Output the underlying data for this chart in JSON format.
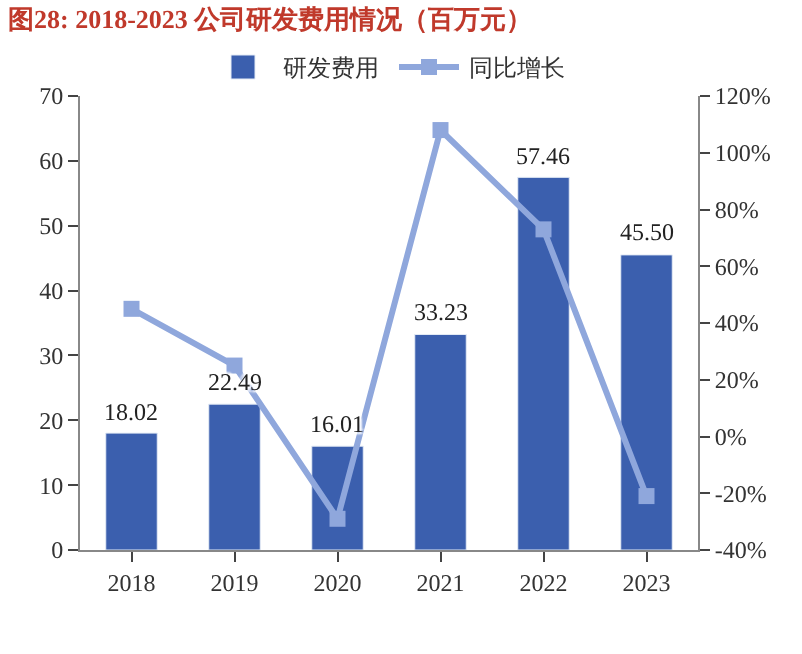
{
  "chart_data": {
    "type": "bar",
    "title": "图28: 2018-2023 公司研发费用情况（百万元）",
    "categories": [
      "2018",
      "2019",
      "2020",
      "2021",
      "2022",
      "2023"
    ],
    "series": [
      {
        "name": "研发费用",
        "color": "#3b5fae",
        "values": [
          18.02,
          22.49,
          16.01,
          33.23,
          57.46,
          45.5
        ],
        "value_labels": [
          "18.02",
          "22.49",
          "16.01",
          "33.23",
          "57.46",
          "45.50"
        ]
      },
      {
        "name": "同比增长",
        "type": "line",
        "axis": "y2",
        "color": "#8fa7dc",
        "marker": "square",
        "values": [
          45,
          25,
          -29,
          108,
          73,
          -21
        ]
      }
    ],
    "ylim": [
      0,
      70
    ],
    "yticks": [
      0,
      10,
      20,
      30,
      40,
      50,
      60,
      70
    ],
    "y2lim": [
      -40,
      120
    ],
    "y2ticks": [
      {
        "value": -40,
        "label": "-40%"
      },
      {
        "value": -20,
        "label": "-20%"
      },
      {
        "value": 0,
        "label": "0%"
      },
      {
        "value": 20,
        "label": "20%"
      },
      {
        "value": 40,
        "label": "40%"
      },
      {
        "value": 60,
        "label": "60%"
      },
      {
        "value": 80,
        "label": "80%"
      },
      {
        "value": 100,
        "label": "100%"
      },
      {
        "value": 120,
        "label": "120%"
      }
    ],
    "legend": "top",
    "grid": false
  }
}
